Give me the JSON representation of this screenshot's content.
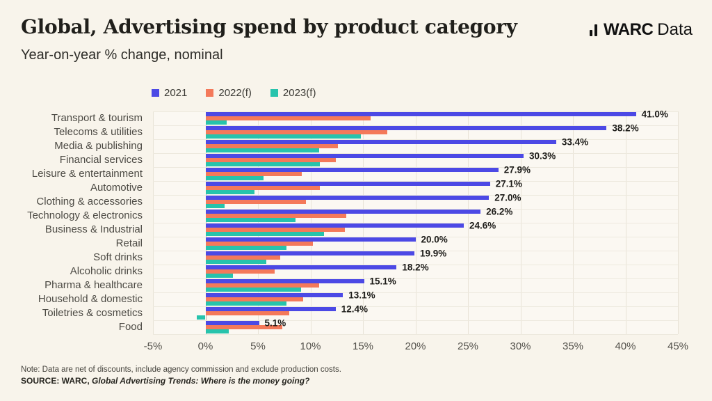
{
  "header": {
    "title": "Global, Advertising spend by product category",
    "subtitle": "Year-on-year % change, nominal"
  },
  "logo": {
    "brand": "WARC",
    "suffix": "Data"
  },
  "colors": {
    "background": "#f8f4eb",
    "plot_background": "#fbf8f2",
    "gridline": "#e8e3d7",
    "series_2021": "#4c49e5",
    "series_2022": "#f4795a",
    "series_2023": "#27c3ac"
  },
  "legend": [
    {
      "label": "2021",
      "color": "#4c49e5"
    },
    {
      "label": "2022(f)",
      "color": "#f4795a"
    },
    {
      "label": "2023(f)",
      "color": "#27c3ac"
    }
  ],
  "chart_data": {
    "type": "bar",
    "orientation": "horizontal",
    "title": "Global, Advertising spend by product category",
    "subtitle": "Year-on-year % change, nominal",
    "grid": true,
    "legend_position": "top",
    "xlim": [
      -5,
      45
    ],
    "x_ticks": [
      "-5%",
      "0%",
      "5%",
      "10%",
      "15%",
      "20%",
      "25%",
      "30%",
      "35%",
      "40%",
      "45%"
    ],
    "categories": [
      "Transport & tourism",
      "Telecoms & utilities",
      "Media & publishing",
      "Financial services",
      "Leisure & entertainment",
      "Automotive",
      "Clothing & accessories",
      "Technology & electronics",
      "Business & Industrial",
      "Retail",
      "Soft drinks",
      "Alcoholic drinks",
      "Pharma & healthcare",
      "Household & domestic",
      "Toiletries & cosmetics",
      "Food"
    ],
    "series": [
      {
        "name": "2021",
        "color": "#4c49e5",
        "values": [
          41.0,
          38.2,
          33.4,
          30.3,
          27.9,
          27.1,
          27.0,
          26.2,
          24.6,
          20.0,
          19.9,
          18.2,
          15.1,
          13.1,
          12.4,
          5.1
        ]
      },
      {
        "name": "2022(f)",
        "color": "#f4795a",
        "values": [
          15.7,
          17.3,
          12.6,
          12.4,
          9.2,
          10.9,
          9.6,
          13.4,
          13.3,
          10.2,
          7.1,
          6.6,
          10.8,
          9.3,
          8.0,
          7.3
        ]
      },
      {
        "name": "2023(f)",
        "color": "#27c3ac",
        "values": [
          2.0,
          14.8,
          10.8,
          10.9,
          5.5,
          4.7,
          1.8,
          8.6,
          11.3,
          7.7,
          5.8,
          2.6,
          9.1,
          7.7,
          -0.8,
          2.2
        ]
      }
    ],
    "bar_labels": [
      "41.0%",
      "38.2%",
      "33.4%",
      "30.3%",
      "27.9%",
      "27.1%",
      "27.0%",
      "26.2%",
      "24.6%",
      "20.0%",
      "19.9%",
      "18.2%",
      "15.1%",
      "13.1%",
      "12.4%",
      "5.1%"
    ]
  },
  "footer": {
    "note": "Note: Data are net of discounts, include agency commission and exclude production costs.",
    "source_prefix": "SOURCE: WARC, ",
    "source_title": "Global Advertising Trends: Where is the money going?"
  }
}
